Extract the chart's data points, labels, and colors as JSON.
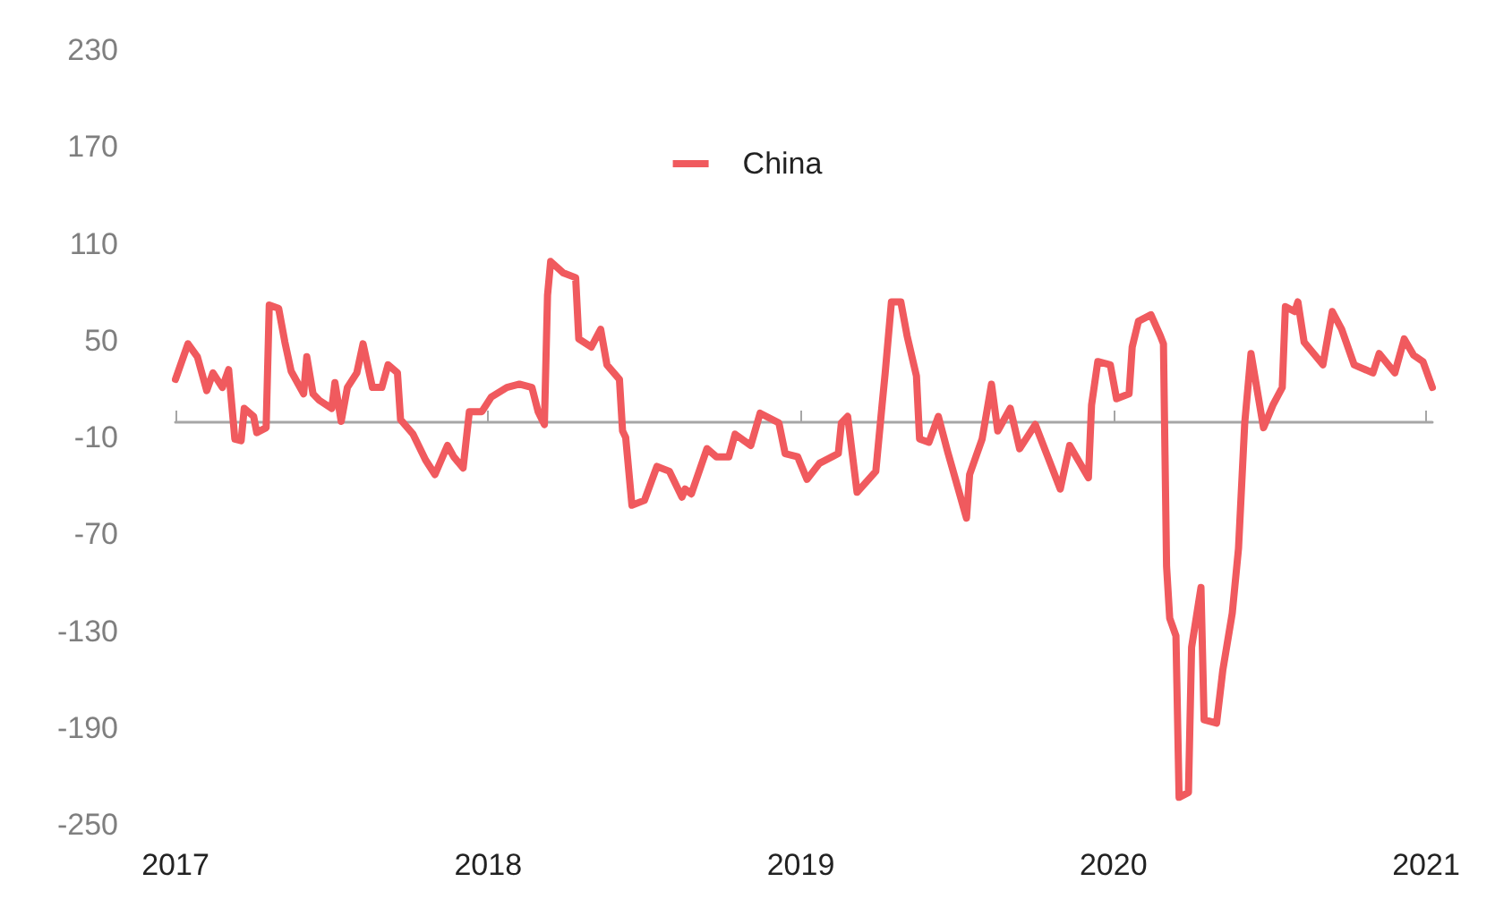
{
  "chart_data": {
    "type": "line",
    "legend": "top",
    "grid": false,
    "marker": "none",
    "line_style": "solid",
    "xlim": [
      2017,
      2021.02
    ],
    "xticks": [
      2017,
      2018,
      2019,
      2020,
      2021
    ],
    "ylim": [
      -250,
      230
    ],
    "yticks": [
      -250,
      -190,
      -130,
      -70,
      -10,
      50,
      110,
      170,
      230
    ],
    "series": [
      {
        "name": "China",
        "color": "#f05a5e",
        "x": [
          2017.0,
          2017.04,
          2017.07,
          2017.1,
          2017.12,
          2017.15,
          2017.17,
          2017.19,
          2017.21,
          2017.22,
          2017.25,
          2017.26,
          2017.29,
          2017.3,
          2017.33,
          2017.35,
          2017.37,
          2017.41,
          2017.42,
          2017.44,
          2017.46,
          2017.5,
          2017.51,
          2017.53,
          2017.55,
          2017.58,
          2017.6,
          2017.63,
          2017.66,
          2017.68,
          2017.71,
          2017.72,
          2017.76,
          2017.8,
          2017.83,
          2017.87,
          2017.89,
          2017.92,
          2017.94,
          2017.98,
          2018.01,
          2018.06,
          2018.1,
          2018.14,
          2018.16,
          2018.18,
          2018.19,
          2018.2,
          2018.24,
          2018.28,
          2018.29,
          2018.33,
          2018.36,
          2018.38,
          2018.42,
          2018.43,
          2018.44,
          2018.46,
          2018.5,
          2018.54,
          2018.58,
          2018.62,
          2018.63,
          2018.65,
          2018.7,
          2018.73,
          2018.77,
          2018.79,
          2018.84,
          2018.87,
          2018.93,
          2018.95,
          2018.99,
          2019.02,
          2019.06,
          2019.1,
          2019.12,
          2019.13,
          2019.15,
          2019.18,
          2019.24,
          2019.26,
          2019.27,
          2019.29,
          2019.32,
          2019.34,
          2019.37,
          2019.38,
          2019.41,
          2019.44,
          2019.47,
          2019.53,
          2019.54,
          2019.58,
          2019.61,
          2019.63,
          2019.67,
          2019.7,
          2019.75,
          2019.79,
          2019.83,
          2019.86,
          2019.92,
          2019.93,
          2019.95,
          2019.99,
          2020.01,
          2020.05,
          2020.06,
          2020.08,
          2020.12,
          2020.15,
          2020.16,
          2020.17,
          2020.18,
          2020.2,
          2020.21,
          2020.24,
          2020.25,
          2020.28,
          2020.29,
          2020.33,
          2020.35,
          2020.38,
          2020.4,
          2020.42,
          2020.44,
          2020.48,
          2020.51,
          2020.54,
          2020.55,
          2020.58,
          2020.59,
          2020.61,
          2020.67,
          2020.7,
          2020.73,
          2020.77,
          2020.83,
          2020.85,
          2020.9,
          2020.93,
          2020.96,
          2020.99,
          2021.02
        ],
        "values": [
          26,
          48,
          40,
          19,
          30,
          21,
          32,
          -11,
          -12,
          8,
          3,
          -7,
          -4,
          72,
          70,
          49,
          31,
          17,
          40,
          17,
          13,
          8,
          24,
          0,
          21,
          30,
          48,
          21,
          21,
          35,
          30,
          1,
          -8,
          -24,
          -33,
          -15,
          -22,
          -29,
          6,
          6,
          15,
          21,
          23,
          21,
          6,
          -2,
          78,
          99,
          92,
          89,
          51,
          46,
          57,
          35,
          26,
          -6,
          -10,
          -52,
          -49,
          -28,
          -31,
          -47,
          -42,
          -45,
          -17,
          -22,
          -22,
          -8,
          -15,
          5,
          -1,
          -20,
          -22,
          -36,
          -26,
          -22,
          -20,
          -1,
          3,
          -44,
          -31,
          10,
          30,
          74,
          74,
          53,
          28,
          -11,
          -13,
          3,
          -19,
          -60,
          -33,
          -11,
          23,
          -6,
          8,
          -17,
          -2,
          -22,
          -42,
          -15,
          -35,
          10,
          37,
          35,
          14,
          17,
          46,
          62,
          66,
          53,
          48,
          -90,
          -122,
          -133,
          -233,
          -230,
          -140,
          -103,
          -185,
          -187,
          -154,
          -119,
          -79,
          -1,
          42,
          -4,
          10,
          21,
          71,
          68,
          74,
          49,
          35,
          68,
          57,
          35,
          30,
          42,
          30,
          51,
          41,
          37,
          21
        ]
      }
    ]
  }
}
